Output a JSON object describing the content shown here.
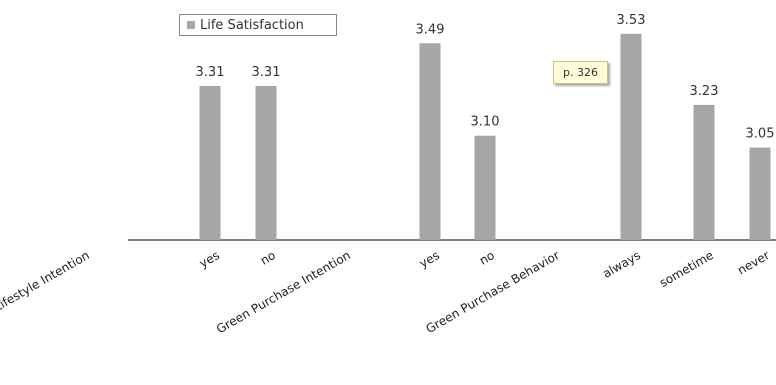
{
  "chart_data": {
    "type": "bar",
    "title": "",
    "xlabel": "",
    "ylabel": "",
    "ylim": [
      3.0,
      3.55
    ],
    "grid": false,
    "legend_position": "top-left",
    "series": [
      {
        "name": "Life Satisfaction",
        "color": "#a6a6a6",
        "values": [
          null,
          3.31,
          3.31,
          null,
          3.49,
          3.1,
          null,
          3.53,
          3.23,
          3.05
        ]
      }
    ],
    "categories": [
      "Green Lifestyle Intention",
      "yes",
      "no",
      "Green Purchase Intention",
      "yes",
      "no",
      "Green Purchase Behavior",
      "always",
      "sometime",
      "never"
    ],
    "value_labels": [
      "",
      "3.31",
      "3.31",
      "",
      "3.49",
      "3.10",
      "",
      "3.53",
      "3.23",
      "3.05"
    ]
  },
  "legend_label": "Life Satisfaction",
  "note_label": "p. 326"
}
